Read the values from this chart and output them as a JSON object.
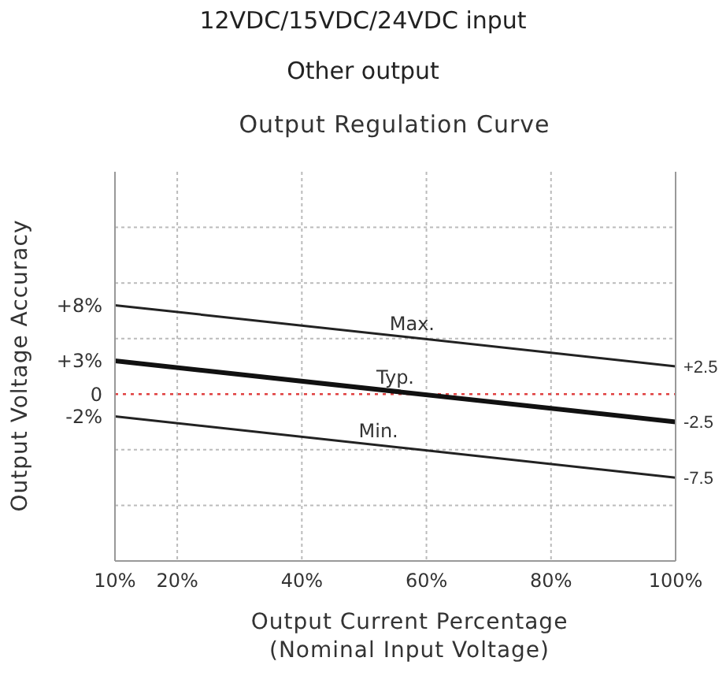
{
  "chart_data": {
    "type": "line",
    "title": "Output Regulation Curve",
    "annotations": [
      "12VDC/15VDC/24VDC input",
      "Other output"
    ],
    "xlabel": "Output Current Percentage\n(Nominal Input Voltage)",
    "ylabel": "Output Voltage Accuracy",
    "x": [
      10,
      100
    ],
    "series": [
      {
        "name": "Max.",
        "color": "#222222",
        "values": [
          8,
          2.5
        ]
      },
      {
        "name": "Typ.",
        "color": "#111111",
        "values": [
          3,
          -2.5
        ]
      },
      {
        "name": "Min.",
        "color": "#222222",
        "values": [
          -2,
          -7.5
        ]
      }
    ],
    "xlim": [
      10,
      100
    ],
    "xticks": [
      {
        "value": 10,
        "label": "10%"
      },
      {
        "value": 20,
        "label": "20%"
      },
      {
        "value": 40,
        "label": "40%"
      },
      {
        "value": 60,
        "label": "60%"
      },
      {
        "value": 80,
        "label": "80%"
      },
      {
        "value": 100,
        "label": "100%"
      }
    ],
    "ylim": [
      -15,
      20
    ],
    "yticks": [
      {
        "value": 15,
        "label": null
      },
      {
        "value": 10,
        "label": null
      },
      {
        "value": 8,
        "label": "+8%"
      },
      {
        "value": 5,
        "label": null
      },
      {
        "value": 3,
        "label": "+3%"
      },
      0,
      {
        "value": -2,
        "label": "-2%"
      },
      {
        "value": -5,
        "label": null
      },
      {
        "value": -10,
        "label": null
      }
    ],
    "y2lim": [
      -15,
      20
    ],
    "y2ticks": [
      {
        "value": 2.5,
        "label": "+2.5"
      },
      {
        "value": -2.5,
        "label": "-2.5"
      },
      {
        "value": -7.5,
        "label": "-7.5"
      }
    ],
    "ref_lines": [
      {
        "axis": "y",
        "value": 0,
        "color": "#e04040",
        "line_style": "dotted"
      }
    ],
    "grid": true,
    "marker": "none",
    "line_style": "solid"
  }
}
